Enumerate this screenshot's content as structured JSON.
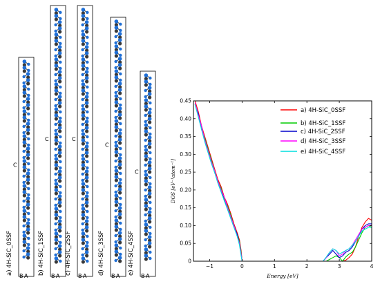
{
  "structures": [
    {
      "caption": "a) 4H-SiC_0SSF",
      "side_label": "C",
      "bottom_labels": [
        "B",
        "A"
      ]
    },
    {
      "caption": "b) 4H-SiC_1SSF",
      "side_label": "C",
      "bottom_labels": [
        "B",
        "A"
      ]
    },
    {
      "caption": "c) 4H-SiC_2SSF",
      "side_label": "C",
      "bottom_labels": [
        "B",
        "A"
      ]
    },
    {
      "caption": "d) 4H-SiC_3SSF",
      "side_label": "C",
      "bottom_labels": [
        "B",
        "A"
      ]
    },
    {
      "caption": "e) 4H-SiC_4SSF",
      "side_label": "C",
      "bottom_labels": [
        "B",
        "A"
      ]
    }
  ],
  "atom_colors": {
    "si": "#1f6fd6",
    "c": "#3a3a3a",
    "bond": "#555555"
  },
  "chart_data": {
    "type": "line",
    "title": "",
    "xlabel": "Energy [eV]",
    "ylabel": "DOS [eV⁻¹atom⁻¹]",
    "xlim": [
      -1.5,
      4
    ],
    "ylim": [
      0,
      0.45
    ],
    "xticks": [
      -1,
      0,
      1,
      2,
      3,
      4
    ],
    "xtick_labels": [
      "−1",
      "0",
      "1",
      "2",
      "3",
      "4"
    ],
    "yticks": [
      0,
      0.05,
      0.1,
      0.15,
      0.2,
      0.25,
      0.3,
      0.35,
      0.4,
      0.45
    ],
    "ytick_labels": [
      "0",
      "0.05",
      "0.10",
      "0.15",
      "0.20",
      "0.25",
      "0.30",
      "0.35",
      "0.40",
      "0.45"
    ],
    "grid": false,
    "legend_position": "top-right",
    "series": [
      {
        "name": "a) 4H-SiC_0SSF",
        "color": "#ff0000",
        "x": [
          -1.45,
          -1.35,
          -1.25,
          -1.15,
          -1.05,
          -0.95,
          -0.85,
          -0.75,
          -0.65,
          -0.55,
          -0.45,
          -0.35,
          -0.25,
          -0.15,
          -0.08,
          -0.03,
          0.0,
          3.1,
          3.2,
          3.3,
          3.4,
          3.5,
          3.6,
          3.7,
          3.8,
          3.9,
          4.0
        ],
        "y": [
          0.45,
          0.42,
          0.38,
          0.35,
          0.32,
          0.29,
          0.26,
          0.23,
          0.21,
          0.18,
          0.16,
          0.135,
          0.105,
          0.08,
          0.06,
          0.03,
          0.0,
          0.0,
          0.003,
          0.01,
          0.02,
          0.04,
          0.07,
          0.095,
          0.11,
          0.12,
          0.115
        ]
      },
      {
        "name": "b) 4H-SiC_1SSF",
        "color": "#00cc00",
        "x": [
          -1.45,
          -1.35,
          -1.25,
          -1.15,
          -1.05,
          -0.95,
          -0.85,
          -0.75,
          -0.65,
          -0.55,
          -0.45,
          -0.35,
          -0.25,
          -0.15,
          -0.08,
          -0.03,
          0.0,
          2.6,
          2.7,
          2.8,
          2.9,
          3.0,
          3.1,
          3.2,
          3.3,
          3.4,
          3.5,
          3.6,
          3.7,
          3.8,
          3.9,
          4.0
        ],
        "y": [
          0.44,
          0.41,
          0.375,
          0.345,
          0.315,
          0.285,
          0.255,
          0.225,
          0.205,
          0.175,
          0.155,
          0.13,
          0.1,
          0.075,
          0.055,
          0.025,
          0.0,
          0.0,
          0.005,
          0.01,
          0.015,
          0.01,
          0.0,
          0.012,
          0.02,
          0.025,
          0.04,
          0.06,
          0.08,
          0.095,
          0.1,
          0.095
        ]
      },
      {
        "name": "c) 4H-SiC_2SSF",
        "color": "#0000cc",
        "x": [
          -1.45,
          -1.35,
          -1.25,
          -1.15,
          -1.05,
          -0.95,
          -0.85,
          -0.75,
          -0.65,
          -0.55,
          -0.45,
          -0.35,
          -0.25,
          -0.15,
          -0.08,
          -0.03,
          0.0,
          2.5,
          2.6,
          2.7,
          2.8,
          2.9,
          3.0,
          3.1,
          3.2,
          3.3,
          3.4,
          3.5,
          3.6,
          3.7,
          3.8,
          3.9,
          4.0
        ],
        "y": [
          0.44,
          0.415,
          0.37,
          0.34,
          0.31,
          0.28,
          0.25,
          0.225,
          0.2,
          0.17,
          0.15,
          0.125,
          0.1,
          0.075,
          0.05,
          0.02,
          0.0,
          0.0,
          0.01,
          0.02,
          0.03,
          0.02,
          0.01,
          0.015,
          0.025,
          0.03,
          0.04,
          0.055,
          0.07,
          0.09,
          0.1,
          0.105,
          0.105
        ]
      },
      {
        "name": "d) 4H-SiC_3SSF",
        "color": "#ff00ff",
        "x": [
          -1.45,
          -1.35,
          -1.25,
          -1.15,
          -1.05,
          -0.95,
          -0.85,
          -0.75,
          -0.65,
          -0.55,
          -0.45,
          -0.35,
          -0.25,
          -0.15,
          -0.08,
          -0.03,
          0.0,
          2.5,
          2.6,
          2.7,
          2.8,
          2.9,
          3.0,
          3.1,
          3.2,
          3.3,
          3.4,
          3.5,
          3.6,
          3.7,
          3.8,
          3.9,
          4.0
        ],
        "y": [
          0.445,
          0.41,
          0.38,
          0.34,
          0.31,
          0.28,
          0.255,
          0.225,
          0.2,
          0.18,
          0.15,
          0.125,
          0.1,
          0.07,
          0.05,
          0.02,
          0.0,
          0.0,
          0.01,
          0.025,
          0.035,
          0.03,
          0.015,
          0.02,
          0.03,
          0.035,
          0.045,
          0.06,
          0.075,
          0.09,
          0.095,
          0.1,
          0.1
        ]
      },
      {
        "name": "e) 4H-SiC_4SSF",
        "color": "#00dddd",
        "x": [
          -1.45,
          -1.35,
          -1.25,
          -1.15,
          -1.05,
          -0.95,
          -0.85,
          -0.75,
          -0.65,
          -0.55,
          -0.45,
          -0.35,
          -0.25,
          -0.15,
          -0.08,
          -0.03,
          0.0,
          2.5,
          2.6,
          2.7,
          2.8,
          2.9,
          3.0,
          3.1,
          3.2,
          3.3,
          3.4,
          3.5,
          3.6,
          3.7,
          3.8,
          3.9,
          4.0
        ],
        "y": [
          0.44,
          0.405,
          0.37,
          0.335,
          0.305,
          0.275,
          0.25,
          0.22,
          0.195,
          0.17,
          0.145,
          0.12,
          0.095,
          0.07,
          0.045,
          0.015,
          0.0,
          0.0,
          0.012,
          0.025,
          0.035,
          0.03,
          0.02,
          0.025,
          0.03,
          0.035,
          0.045,
          0.055,
          0.07,
          0.085,
          0.09,
          0.095,
          0.095
        ]
      }
    ]
  }
}
